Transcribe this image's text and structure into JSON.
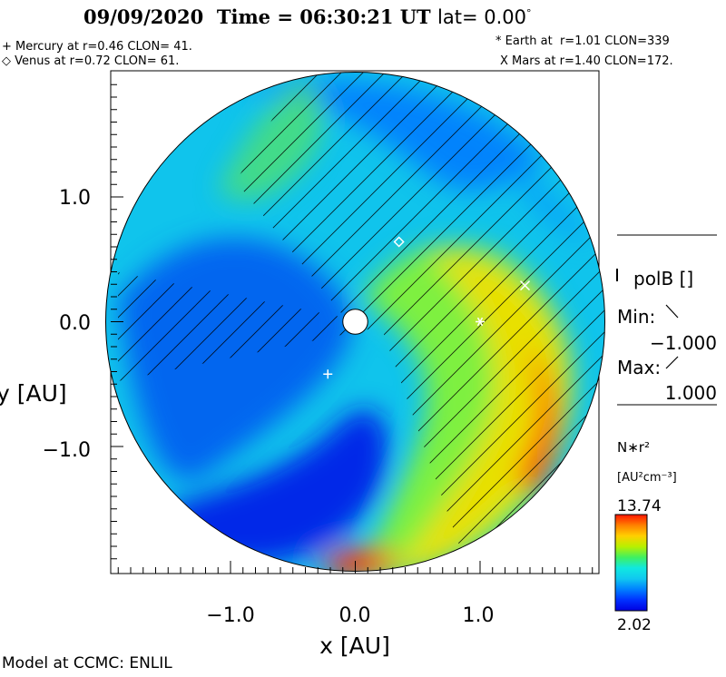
{
  "header": {
    "date": "09/09/2020",
    "time_label": "Time = 06:30:21 UT",
    "lat_label": "lat= 0.00",
    "lat_unit": "°"
  },
  "planets": [
    {
      "symbol": "+",
      "text": "+ Mercury at r=0.46 CLON= 41."
    },
    {
      "symbol": "◇",
      "text": "◇ Venus at r=0.72 CLON= 61."
    },
    {
      "symbol": "*",
      "text": "* Earth at  r=1.01 CLON=339"
    },
    {
      "symbol": "X",
      "text": "X Mars at r=1.40 CLON=172."
    }
  ],
  "chart_data": {
    "type": "heatmap",
    "title": "09/09/2020 Time = 06:30:21 UT lat= 0.00°",
    "xlabel": "x [AU]",
    "ylabel": "y [AU]",
    "xlim": [
      -2.0,
      2.0
    ],
    "ylim": [
      -2.0,
      2.0
    ],
    "x_ticks": [
      "−1.0",
      "0.0",
      "1.0"
    ],
    "y_ticks": [
      "1.0",
      "0.0",
      "−1.0"
    ],
    "x_tick_values": [
      -1.0,
      0.0,
      1.0
    ],
    "y_tick_values": [
      1.0,
      0.0,
      -1.0
    ],
    "domain_radius": 2.0,
    "sun_radius": 0.1,
    "colorbar": {
      "label": "N∗r²",
      "units": "[AU²cm⁻³]",
      "max": "13.74",
      "min": "2.02",
      "colors": [
        "#ff1500",
        "#ff8000",
        "#ffd000",
        "#b8f000",
        "#40f060",
        "#10e8e0",
        "#10c8f0",
        "#0080ff",
        "#0030ff",
        "#0000e0"
      ]
    },
    "polB_legend": {
      "title": "polB []",
      "min_label": "Min:",
      "min_value": "−1.000",
      "max_label": "Max:",
      "max_value": "1.000"
    },
    "bodies": [
      {
        "name": "Mercury",
        "marker": "+",
        "x": -0.22,
        "y": -0.42
      },
      {
        "name": "Venus",
        "marker": "diamond",
        "x": 0.35,
        "y": 0.64
      },
      {
        "name": "Earth",
        "marker": "*",
        "x": 1.0,
        "y": 0.0
      },
      {
        "name": "Mars",
        "marker": "x",
        "x": 1.36,
        "y": 0.29
      }
    ]
  },
  "footer": {
    "model": "Model at CCMC: ENLIL"
  }
}
